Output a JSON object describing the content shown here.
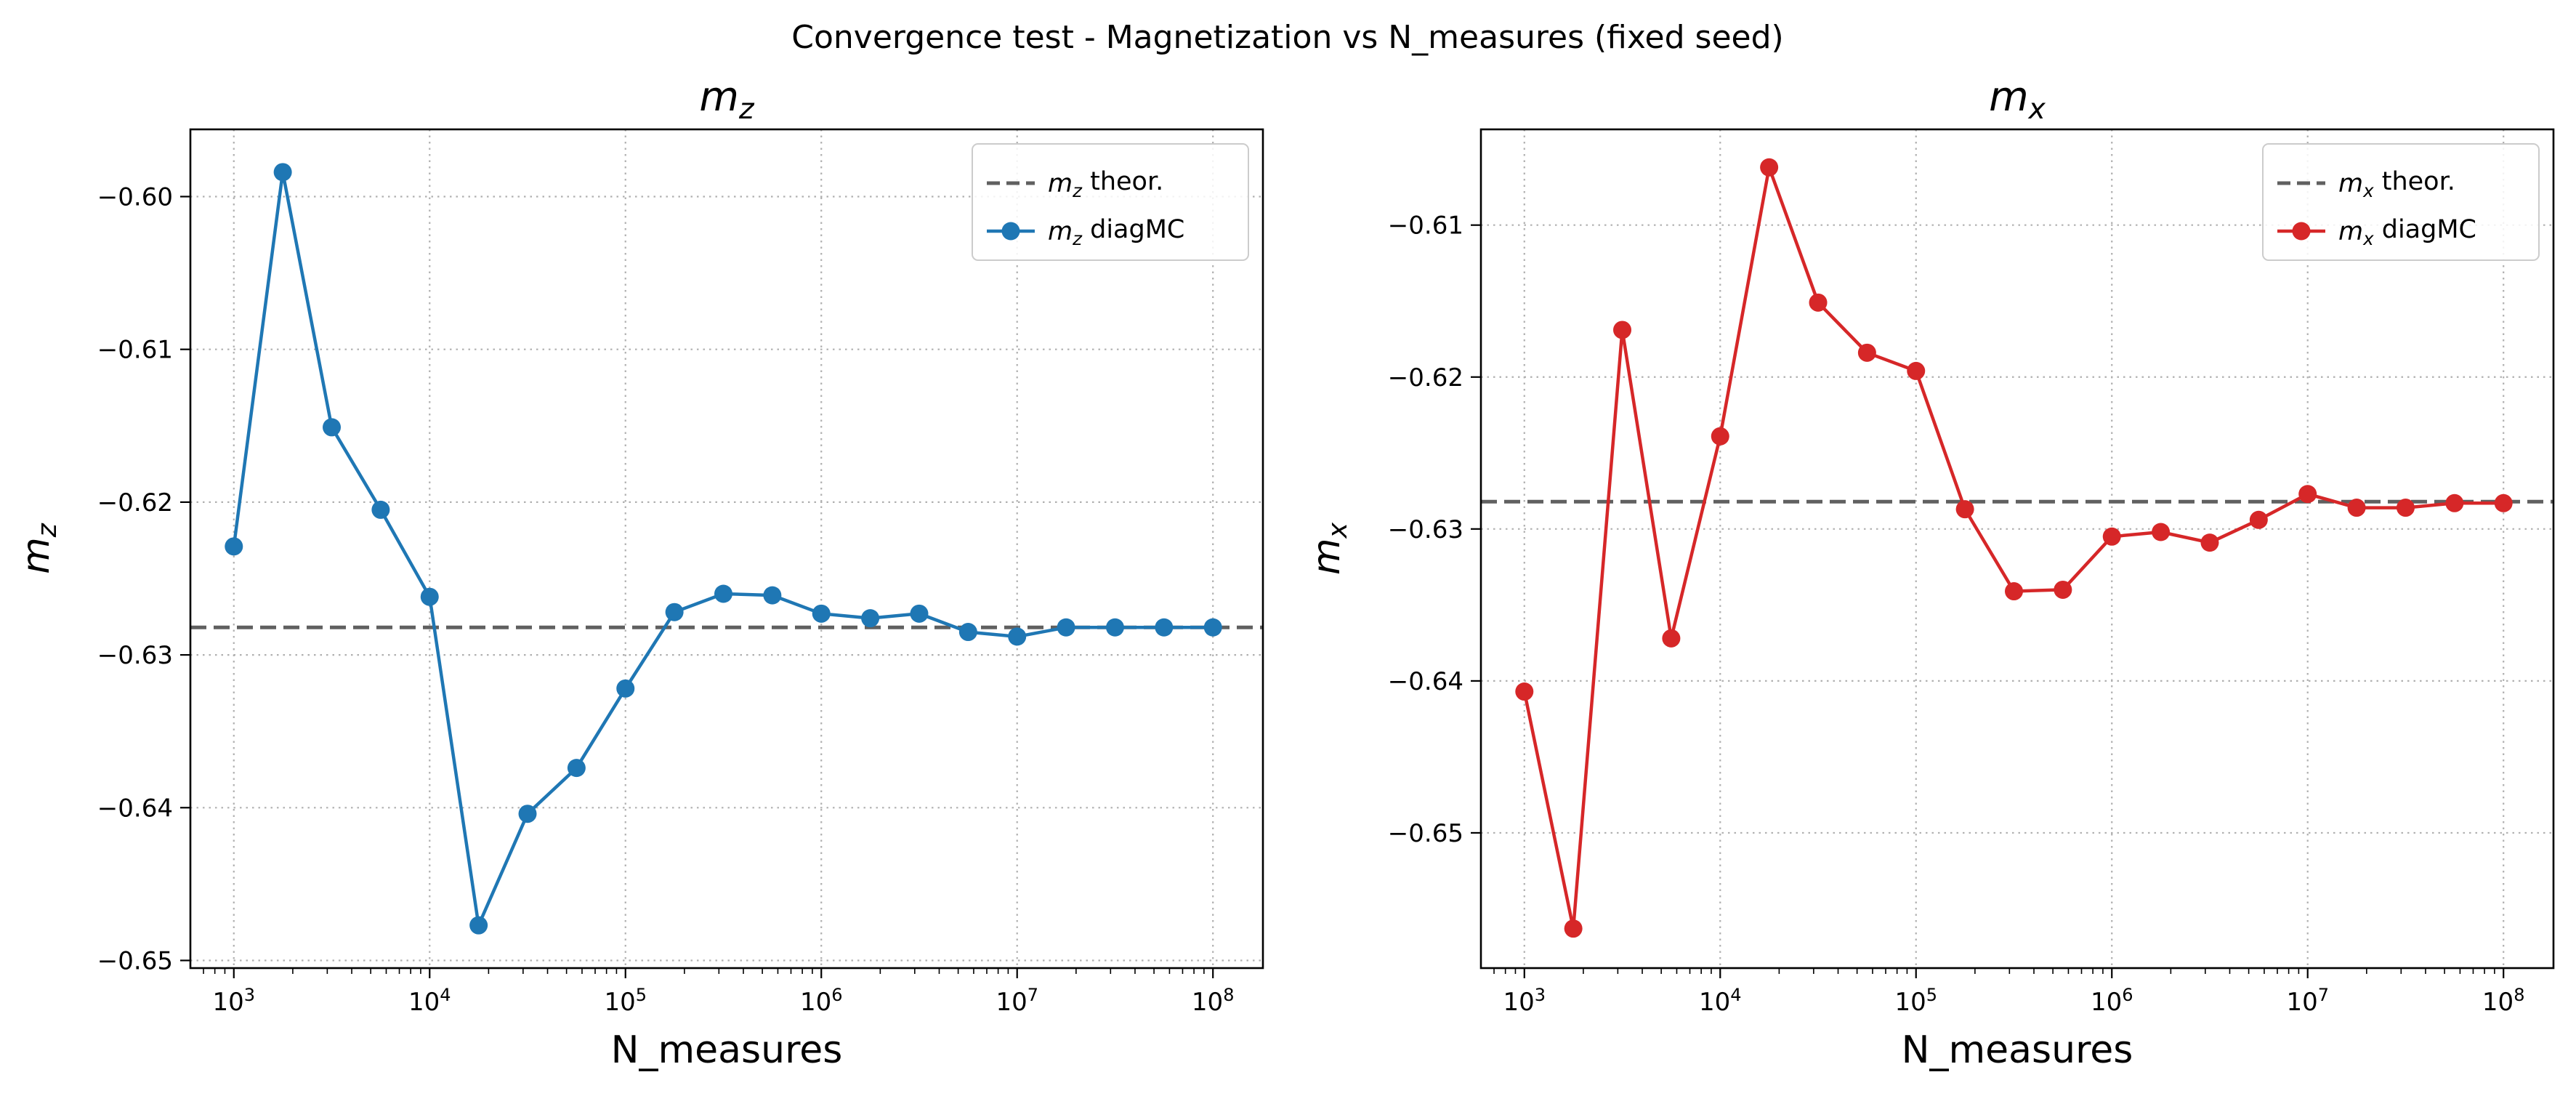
{
  "figure": {
    "title": "Convergence test - Magnetization vs N_measures (fixed seed)"
  },
  "chart_data": [
    {
      "type": "line",
      "title": "m_z",
      "xlabel": "N_measures",
      "ylabel": "m_z",
      "xscale": "log",
      "xlim": [
        600,
        180000000
      ],
      "ylim": [
        -0.6505,
        -0.5956
      ],
      "x_ticks": [
        1000,
        10000,
        100000,
        1000000,
        10000000,
        100000000
      ],
      "x_tick_labels": [
        {
          "base": "10",
          "exp": "3"
        },
        {
          "base": "10",
          "exp": "4"
        },
        {
          "base": "10",
          "exp": "5"
        },
        {
          "base": "10",
          "exp": "6"
        },
        {
          "base": "10",
          "exp": "7"
        },
        {
          "base": "10",
          "exp": "8"
        }
      ],
      "y_ticks": [
        -0.65,
        -0.64,
        -0.63,
        -0.62,
        -0.61,
        -0.6
      ],
      "y_tick_labels": [
        "−0.65",
        "−0.64",
        "−0.63",
        "−0.62",
        "−0.61",
        "−0.60"
      ],
      "grid": true,
      "legend_position": "top-right",
      "reference_line": {
        "name": "m_z theor.",
        "value": -0.6282,
        "color": "#606060",
        "style": "dashed"
      },
      "series": [
        {
          "name": "m_z diagMC",
          "color": "#1f77b4",
          "x": [
            1000,
            1778,
            3162,
            5623,
            10000,
            17783,
            31623,
            56234,
            100000,
            177828,
            316228,
            562341,
            1000000,
            1778279,
            3162278,
            5623413,
            10000000,
            17782794,
            31622777,
            56234133,
            100000000
          ],
          "y": [
            -0.6229,
            -0.5984,
            -0.6151,
            -0.6205,
            -0.6262,
            -0.6477,
            -0.6404,
            -0.6374,
            -0.6322,
            -0.6272,
            -0.626,
            -0.6261,
            -0.6273,
            -0.6276,
            -0.6273,
            -0.6285,
            -0.6288,
            -0.6282,
            -0.6282,
            -0.6282,
            -0.6282
          ]
        }
      ]
    },
    {
      "type": "line",
      "title": "m_x",
      "xlabel": "N_measures",
      "ylabel": "m_x",
      "xscale": "log",
      "xlim": [
        600,
        180000000
      ],
      "ylim": [
        -0.6589,
        -0.6037
      ],
      "x_ticks": [
        1000,
        10000,
        100000,
        1000000,
        10000000,
        100000000
      ],
      "x_tick_labels": [
        {
          "base": "10",
          "exp": "3"
        },
        {
          "base": "10",
          "exp": "4"
        },
        {
          "base": "10",
          "exp": "5"
        },
        {
          "base": "10",
          "exp": "6"
        },
        {
          "base": "10",
          "exp": "7"
        },
        {
          "base": "10",
          "exp": "8"
        }
      ],
      "y_ticks": [
        -0.65,
        -0.64,
        -0.63,
        -0.62,
        -0.61
      ],
      "y_tick_labels": [
        "−0.65",
        "−0.64",
        "−0.63",
        "−0.62",
        "−0.61"
      ],
      "grid": true,
      "legend_position": "top-right",
      "reference_line": {
        "name": "m_x theor.",
        "value": -0.6282,
        "color": "#606060",
        "style": "dashed"
      },
      "series": [
        {
          "name": "m_x diagMC",
          "color": "#d62728",
          "x": [
            1000,
            1778,
            3162,
            5623,
            10000,
            17783,
            31623,
            56234,
            100000,
            177828,
            316228,
            562341,
            1000000,
            1778279,
            3162278,
            5623413,
            10000000,
            17782794,
            31622777,
            56234133,
            100000000
          ],
          "y": [
            -0.6407,
            -0.6563,
            -0.6169,
            -0.6372,
            -0.6239,
            -0.6062,
            -0.6151,
            -0.6184,
            -0.6196,
            -0.6287,
            -0.6341,
            -0.634,
            -0.6305,
            -0.6302,
            -0.6309,
            -0.6294,
            -0.6277,
            -0.6286,
            -0.6286,
            -0.6283,
            -0.6283
          ]
        }
      ]
    }
  ]
}
